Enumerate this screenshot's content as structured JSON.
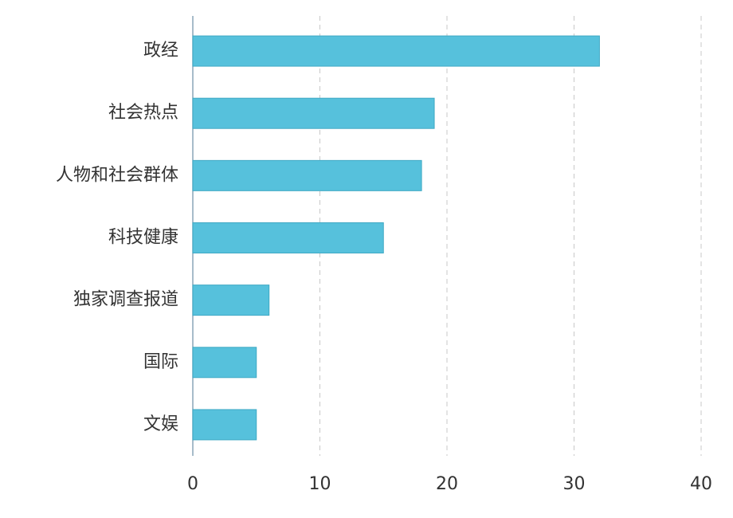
{
  "chart_data": {
    "type": "bar",
    "orientation": "horizontal",
    "categories": [
      "政经",
      "社会热点",
      "人物和社会群体",
      "科技健康",
      "独家调查报道",
      "国际",
      "文娱"
    ],
    "values": [
      32,
      19,
      18,
      15,
      6,
      5,
      5
    ],
    "color": "#56c1dc",
    "xlim": [
      0,
      40
    ],
    "xticks": [
      0,
      10,
      20,
      30,
      40
    ],
    "grid": true,
    "grid_style": "dashed"
  }
}
